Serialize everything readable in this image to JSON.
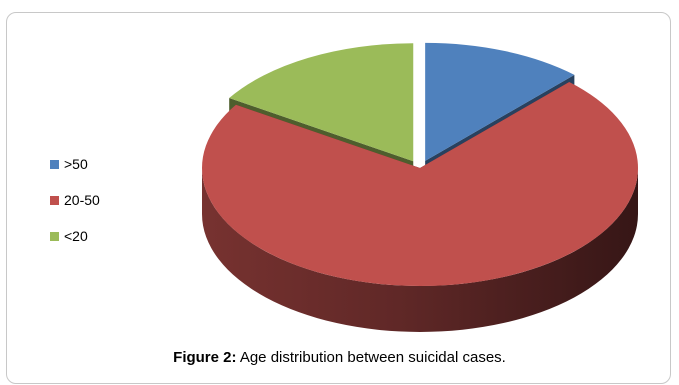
{
  "chart_data": {
    "type": "pie",
    "categories": [
      ">50",
      "20-50",
      "<20"
    ],
    "values": [
      12,
      72,
      16
    ],
    "colors": [
      "#4F81BD",
      "#C0504D",
      "#9BBB59"
    ],
    "legend_position": "left",
    "style": "3d-exploded"
  },
  "caption": {
    "label": "Figure 2:",
    "text": " Age distribution between suicidal cases."
  }
}
